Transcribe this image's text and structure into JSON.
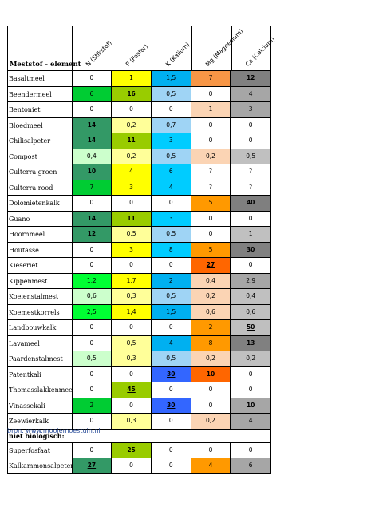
{
  "header": {
    "title": "Meststof - element",
    "columns": [
      "N (Stikstof)",
      "P (Fosfor)",
      "K (Kalium)",
      "Mg (Magnesium)",
      "Ca (Calcium)"
    ]
  },
  "rows": [
    {
      "name": "Basaltmeel",
      "cells": [
        {
          "v": "0",
          "c": "#ffffff"
        },
        {
          "v": "1",
          "c": "#ffff00"
        },
        {
          "v": "1,5",
          "c": "#00b0f0"
        },
        {
          "v": "7",
          "c": "#f79646"
        },
        {
          "v": "12",
          "c": "#808080",
          "s": "b"
        }
      ]
    },
    {
      "name": "Beendermeel",
      "cells": [
        {
          "v": "6",
          "c": "#00cc33"
        },
        {
          "v": "16",
          "c": "#99cc00",
          "s": "b"
        },
        {
          "v": "0,5",
          "c": "#9fd4f5"
        },
        {
          "v": "0",
          "c": "#ffffff"
        },
        {
          "v": "4",
          "c": "#a6a6a6"
        }
      ]
    },
    {
      "name": "Bentoniet",
      "cells": [
        {
          "v": "0",
          "c": "#ffffff"
        },
        {
          "v": "0",
          "c": "#ffffff"
        },
        {
          "v": "0",
          "c": "#ffffff"
        },
        {
          "v": "1",
          "c": "#fbd4b4"
        },
        {
          "v": "3",
          "c": "#a6a6a6"
        }
      ]
    },
    {
      "name": "Bloedmeel",
      "cells": [
        {
          "v": "14",
          "c": "#339966",
          "s": "b"
        },
        {
          "v": "0,2",
          "c": "#ffff99"
        },
        {
          "v": "0,7",
          "c": "#9fd4f5"
        },
        {
          "v": "0",
          "c": "#ffffff"
        },
        {
          "v": "0",
          "c": "#ffffff"
        }
      ]
    },
    {
      "name": "Chilisalpeter",
      "cells": [
        {
          "v": "14",
          "c": "#339966",
          "s": "b"
        },
        {
          "v": "11",
          "c": "#99cc00",
          "s": "b"
        },
        {
          "v": "3",
          "c": "#00ccff"
        },
        {
          "v": "0",
          "c": "#ffffff"
        },
        {
          "v": "0",
          "c": "#ffffff"
        }
      ]
    },
    {
      "name": "Compost",
      "cells": [
        {
          "v": "0,4",
          "c": "#ccffcc"
        },
        {
          "v": "0,2",
          "c": "#ffff99"
        },
        {
          "v": "0,5",
          "c": "#9fd4f5"
        },
        {
          "v": "0,2",
          "c": "#fbd4b4"
        },
        {
          "v": "0,5",
          "c": "#c0c0c0"
        }
      ]
    },
    {
      "name": "Culterra groen",
      "cells": [
        {
          "v": "10",
          "c": "#339966",
          "s": "b"
        },
        {
          "v": "4",
          "c": "#ffff00"
        },
        {
          "v": "6",
          "c": "#00ccff"
        },
        {
          "v": "?",
          "c": "#ffffff"
        },
        {
          "v": "?",
          "c": "#ffffff"
        }
      ]
    },
    {
      "name": "Culterra rood",
      "cells": [
        {
          "v": "7",
          "c": "#00cc33"
        },
        {
          "v": "3",
          "c": "#ffff00"
        },
        {
          "v": "4",
          "c": "#00ccff"
        },
        {
          "v": "?",
          "c": "#ffffff"
        },
        {
          "v": "?",
          "c": "#ffffff"
        }
      ]
    },
    {
      "name": "Dolomietenkalk",
      "cells": [
        {
          "v": "0",
          "c": "#ffffff"
        },
        {
          "v": "0",
          "c": "#ffffff"
        },
        {
          "v": "0",
          "c": "#ffffff"
        },
        {
          "v": "5",
          "c": "#ff9900"
        },
        {
          "v": "40",
          "c": "#7f7f7f",
          "s": "b"
        }
      ]
    },
    {
      "name": "Guano",
      "cells": [
        {
          "v": "14",
          "c": "#339966",
          "s": "b"
        },
        {
          "v": "11",
          "c": "#99cc00",
          "s": "b"
        },
        {
          "v": "3",
          "c": "#00ccff"
        },
        {
          "v": "0",
          "c": "#ffffff"
        },
        {
          "v": "0",
          "c": "#ffffff"
        }
      ]
    },
    {
      "name": "Hoornmeel",
      "cells": [
        {
          "v": "12",
          "c": "#339966",
          "s": "b"
        },
        {
          "v": "0,5",
          "c": "#ffff99"
        },
        {
          "v": "0,5",
          "c": "#9fd4f5"
        },
        {
          "v": "0",
          "c": "#ffffff"
        },
        {
          "v": "1",
          "c": "#c0c0c0"
        }
      ]
    },
    {
      "name": "Houtasse",
      "cells": [
        {
          "v": "0",
          "c": "#ffffff"
        },
        {
          "v": "3",
          "c": "#ffff00"
        },
        {
          "v": "8",
          "c": "#00ccff"
        },
        {
          "v": "5",
          "c": "#ff9900"
        },
        {
          "v": "30",
          "c": "#808080",
          "s": "b"
        }
      ]
    },
    {
      "name": "Kieseriet",
      "cells": [
        {
          "v": "0",
          "c": "#ffffff"
        },
        {
          "v": "0",
          "c": "#ffffff"
        },
        {
          "v": "0",
          "c": "#ffffff"
        },
        {
          "v": "27",
          "c": "#ff6600",
          "s": "u"
        },
        {
          "v": "0",
          "c": "#ffffff"
        }
      ]
    },
    {
      "name": "Kippenmest",
      "cells": [
        {
          "v": "1,2",
          "c": "#00ff33"
        },
        {
          "v": "1,7",
          "c": "#ffff00"
        },
        {
          "v": "2",
          "c": "#00b0f0"
        },
        {
          "v": "0,4",
          "c": "#fbd4b4"
        },
        {
          "v": "2,9",
          "c": "#a6a6a6"
        }
      ]
    },
    {
      "name": "Koeienstalmest",
      "cells": [
        {
          "v": "0,6",
          "c": "#ccffcc"
        },
        {
          "v": "0,3",
          "c": "#ffff99"
        },
        {
          "v": "0,5",
          "c": "#9fd4f5"
        },
        {
          "v": "0,2",
          "c": "#fbd4b4"
        },
        {
          "v": "0,4",
          "c": "#c0c0c0"
        }
      ]
    },
    {
      "name": "Koemestkorrels",
      "cells": [
        {
          "v": "2,5",
          "c": "#00ff33"
        },
        {
          "v": "1,4",
          "c": "#ffff00"
        },
        {
          "v": "1,5",
          "c": "#00b0f0"
        },
        {
          "v": "0,6",
          "c": "#fbd4b4"
        },
        {
          "v": "0,6",
          "c": "#c0c0c0"
        }
      ]
    },
    {
      "name": "Landbouwkalk",
      "cells": [
        {
          "v": "0",
          "c": "#ffffff"
        },
        {
          "v": "0",
          "c": "#ffffff"
        },
        {
          "v": "0",
          "c": "#ffffff"
        },
        {
          "v": "2",
          "c": "#ff9900"
        },
        {
          "v": "50",
          "c": "#bfbfbf",
          "s": "u"
        }
      ]
    },
    {
      "name": "Lavameel",
      "cells": [
        {
          "v": "0",
          "c": "#ffffff"
        },
        {
          "v": "0,5",
          "c": "#ffff99"
        },
        {
          "v": "4",
          "c": "#00b0f0"
        },
        {
          "v": "8",
          "c": "#ff9900"
        },
        {
          "v": "13",
          "c": "#808080",
          "s": "b"
        }
      ]
    },
    {
      "name": "Paardenstalmest",
      "cells": [
        {
          "v": "0,5",
          "c": "#ccffcc"
        },
        {
          "v": "0,3",
          "c": "#ffff99"
        },
        {
          "v": "0,5",
          "c": "#9fd4f5"
        },
        {
          "v": "0,2",
          "c": "#fbd4b4"
        },
        {
          "v": "0,2",
          "c": "#c0c0c0"
        }
      ]
    },
    {
      "name": "Patentkali",
      "cells": [
        {
          "v": "0",
          "c": "#ffffff"
        },
        {
          "v": "0",
          "c": "#ffffff"
        },
        {
          "v": "30",
          "c": "#3366ff",
          "s": "u"
        },
        {
          "v": "10",
          "c": "#ff6600",
          "s": "b"
        },
        {
          "v": "0",
          "c": "#ffffff"
        }
      ]
    },
    {
      "name": "Thomasslakkenmeel",
      "cells": [
        {
          "v": "0",
          "c": "#ffffff"
        },
        {
          "v": "45",
          "c": "#99cc00",
          "s": "u"
        },
        {
          "v": "0",
          "c": "#ffffff"
        },
        {
          "v": "0",
          "c": "#ffffff"
        },
        {
          "v": "0",
          "c": "#ffffff"
        }
      ]
    },
    {
      "name": "Vinassekali",
      "cells": [
        {
          "v": "2",
          "c": "#00cc33"
        },
        {
          "v": "0",
          "c": "#ffffff"
        },
        {
          "v": "30",
          "c": "#3366ff",
          "s": "u"
        },
        {
          "v": "0",
          "c": "#ffffff"
        },
        {
          "v": "10",
          "c": "#a6a6a6",
          "s": "b"
        }
      ]
    },
    {
      "name": "Zeewierkalk",
      "cells": [
        {
          "v": "0",
          "c": "#ffffff"
        },
        {
          "v": "0,3",
          "c": "#ffff99"
        },
        {
          "v": "0",
          "c": "#ffffff"
        },
        {
          "v": "0,2",
          "c": "#fbd4b4"
        },
        {
          "v": "4",
          "c": "#a6a6a6"
        }
      ]
    }
  ],
  "section_label": "niet biologisch:",
  "rows2": [
    {
      "name": "Superfosfaat",
      "cells": [
        {
          "v": "0",
          "c": "#ffffff"
        },
        {
          "v": "25",
          "c": "#99cc00",
          "s": "b"
        },
        {
          "v": "0",
          "c": "#ffffff"
        },
        {
          "v": "0",
          "c": "#ffffff"
        },
        {
          "v": "0",
          "c": "#ffffff"
        }
      ]
    },
    {
      "name": "Kalkammonsalpeter",
      "cells": [
        {
          "v": "27",
          "c": "#339966",
          "s": "u"
        },
        {
          "v": "0",
          "c": "#ffffff"
        },
        {
          "v": "0",
          "c": "#ffffff"
        },
        {
          "v": "4",
          "c": "#ff9900"
        },
        {
          "v": "6",
          "c": "#a6a6a6"
        }
      ]
    }
  ],
  "source": {
    "prefix": "bron: ",
    "link": "www.mooiemoestuin.nl"
  }
}
